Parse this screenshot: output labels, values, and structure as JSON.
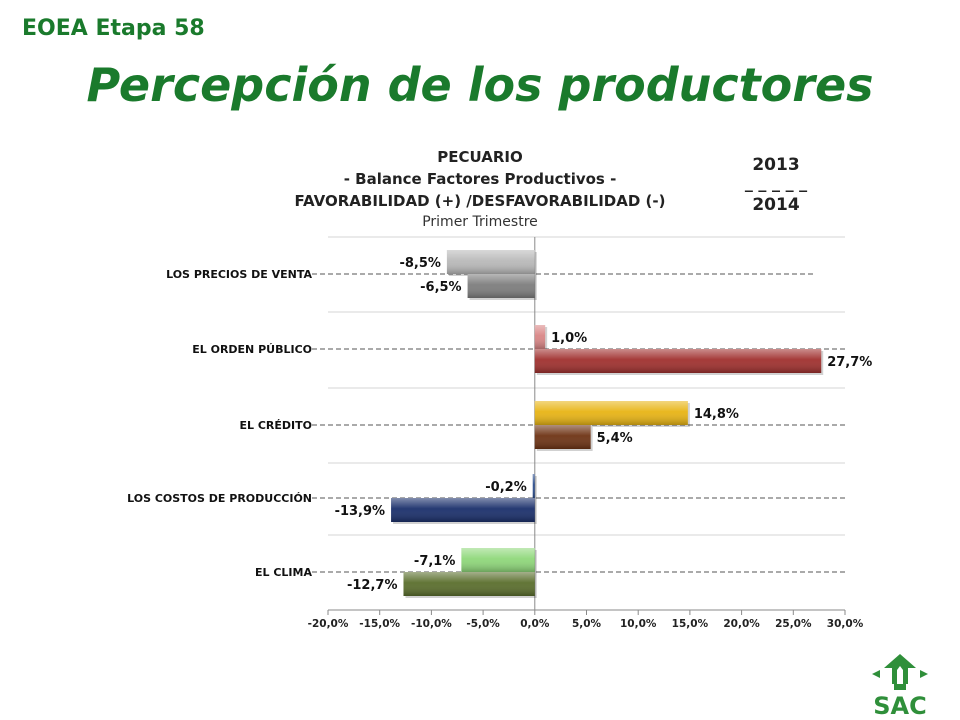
{
  "slide": {
    "subtitle": "EOEA Etapa 58",
    "title": "Percepción de los productores",
    "logo_text": "SAC"
  },
  "chart_data": {
    "type": "bar",
    "orientation": "horizontal",
    "title_lines": [
      "PECUARIO",
      "- Balance Factores Productivos -",
      "FAVORABILIDAD (+) /DESFAVORABILIDAD (-)"
    ],
    "subtitle": "Primer Trimestre",
    "period_label": {
      "top": "2013",
      "separator": "_ _ _ _ _",
      "bottom": "2014"
    },
    "categories": [
      "LOS PRECIOS DE VENTA",
      "EL ORDEN PÚBLICO",
      "EL CRÉDITO",
      "LOS COSTOS DE PRODUCCIÓN",
      "EL CLIMA"
    ],
    "series": [
      {
        "name": "2013",
        "values": [
          -8.5,
          1.0,
          14.8,
          -0.2,
          -7.1
        ]
      },
      {
        "name": "2014",
        "values": [
          -6.5,
          27.7,
          5.4,
          -13.9,
          -12.7
        ]
      }
    ],
    "data_labels": [
      [
        "-8,5%",
        "1,0%",
        "14,8%",
        "-0,2%",
        "-7,1%"
      ],
      [
        "-6,5%",
        "27,7%",
        "5,4%",
        "-13,9%",
        "-12,7%"
      ]
    ],
    "colors": [
      [
        "#b9b9b9",
        "#d98585",
        "#e8b414",
        "#2a4d8e",
        "#8fd87a"
      ],
      [
        "#7d7d7d",
        "#a0302e",
        "#6e3314",
        "#1a2f6b",
        "#5a6e2c"
      ]
    ],
    "xlim": [
      -20,
      30
    ],
    "xticks": [
      -20,
      -15,
      -10,
      -5,
      0,
      5,
      10,
      15,
      20,
      25,
      30
    ],
    "xtick_labels": [
      "-20,0%",
      "-15,0%",
      "-10,0%",
      "-5,0%",
      "0,0%",
      "5,0%",
      "10,0%",
      "15,0%",
      "20,0%",
      "25,0%",
      "30,0%"
    ],
    "grid": true
  }
}
